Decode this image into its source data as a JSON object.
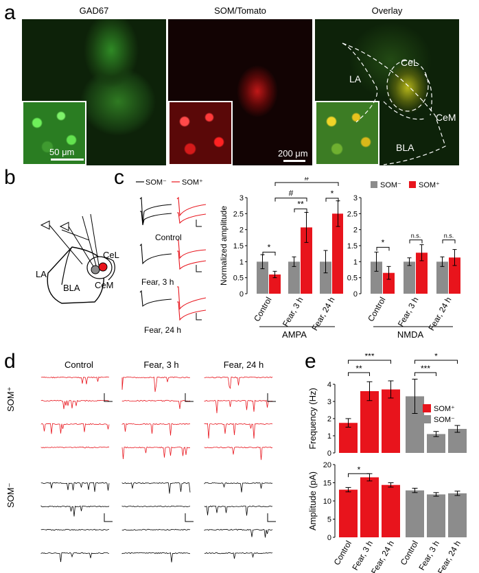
{
  "panel_labels": {
    "a": "a",
    "b": "b",
    "c": "c",
    "d": "d",
    "e": "e"
  },
  "panel_a": {
    "titles": [
      "GAD67",
      "SOM/Tomato",
      "Overlay"
    ],
    "scale_inset": "50 μm",
    "scale_main": "200 μm",
    "regions": {
      "LA": "LA",
      "CeL": "CeL",
      "CeM": "CeM",
      "BLA": "BLA"
    }
  },
  "panel_b": {
    "LA": "LA",
    "CeL": "CeL",
    "CeM": "CeM",
    "BLA": "BLA"
  },
  "panel_c": {
    "trace_legend": {
      "som_neg": "SOM⁻",
      "som_pos": "SOM⁺"
    },
    "trace_labels": [
      "Control",
      "Fear, 3 h",
      "Fear, 24 h"
    ],
    "colors": {
      "som_pos": "#e8141c",
      "som_neg": "#8c8c8c"
    }
  },
  "panel_d": {
    "columns": [
      "Control",
      "Fear, 3 h",
      "Fear, 24 h"
    ],
    "row_labels": [
      "SOM⁺",
      "SOM⁻"
    ]
  },
  "chart_data": [
    {
      "type": "bar",
      "panel": "c-left",
      "ylabel": "Normalized amplitude",
      "ylim": [
        0,
        3
      ],
      "yticks": [
        "0",
        "0.5",
        "1",
        "1.5",
        "2",
        "2.5",
        "3"
      ],
      "categories": [
        "Control",
        "Fear, 3 h",
        "Fear, 24 h"
      ],
      "group_label": "AMPA",
      "series": [
        {
          "values": [
            1.0,
            1.0,
            1.0
          ],
          "errors": [
            0.22,
            0.15,
            0.35
          ],
          "color": "#8c8c8c"
        },
        {
          "values": [
            0.6,
            2.07,
            2.5
          ],
          "errors": [
            0.1,
            0.47,
            0.4
          ],
          "color": "#e8141c"
        }
      ],
      "annotations": [
        "*",
        "**",
        "*",
        "#",
        "#"
      ]
    },
    {
      "type": "bar",
      "panel": "c-right",
      "ylim": [
        0,
        3
      ],
      "yticks": [
        "0",
        "0.5",
        "1",
        "1.5",
        "2",
        "2.5",
        "3"
      ],
      "categories": [
        "Control",
        "Fear, 3 h",
        "Fear, 24 h"
      ],
      "group_label": "NMDA",
      "legend": [
        "SOM⁻",
        "SOM⁺"
      ],
      "series": [
        {
          "name": "SOM⁻",
          "values": [
            1.0,
            1.0,
            1.0
          ],
          "errors": [
            0.3,
            0.12,
            0.15
          ],
          "color": "#8c8c8c"
        },
        {
          "name": "SOM⁺",
          "values": [
            0.65,
            1.28,
            1.13
          ],
          "errors": [
            0.2,
            0.25,
            0.25
          ],
          "color": "#e8141c"
        }
      ],
      "annotations": [
        "*",
        "n.s.",
        "n.s."
      ]
    },
    {
      "type": "bar",
      "panel": "e-top",
      "ylabel": "Frequency (Hz)",
      "ylim": [
        0,
        4
      ],
      "yticks": [
        "0",
        "1",
        "2",
        "3",
        "4"
      ],
      "categories": [
        "Control",
        "Fear, 3 h",
        "Fear, 24 h",
        "Control",
        "Fear, 3 h",
        "Fear, 24 h"
      ],
      "legend": [
        "SOM⁺",
        "SOM⁻"
      ],
      "values": [
        1.75,
        3.6,
        3.7,
        3.3,
        1.1,
        1.4
      ],
      "errors": [
        0.25,
        0.55,
        0.5,
        1.0,
        0.15,
        0.2
      ],
      "colors": [
        "#e8141c",
        "#e8141c",
        "#e8141c",
        "#8c8c8c",
        "#8c8c8c",
        "#8c8c8c"
      ],
      "annotations": [
        "***",
        "**",
        "***",
        "*"
      ]
    },
    {
      "type": "bar",
      "panel": "e-bottom",
      "ylabel": "Amplitude (pA)",
      "ylim": [
        0,
        20
      ],
      "yticks": [
        "0",
        "5",
        "10",
        "15",
        "20"
      ],
      "categories": [
        "Control",
        "Fear, 3 h",
        "Fear, 24 h",
        "Control",
        "Fear, 3 h",
        "Fear, 24 h"
      ],
      "values": [
        13.1,
        16.5,
        14.4,
        12.9,
        11.8,
        12.1
      ],
      "errors": [
        0.6,
        1.0,
        0.6,
        0.6,
        0.5,
        0.6
      ],
      "colors": [
        "#e8141c",
        "#e8141c",
        "#e8141c",
        "#8c8c8c",
        "#8c8c8c",
        "#8c8c8c"
      ],
      "annotations": [
        "*"
      ]
    }
  ]
}
